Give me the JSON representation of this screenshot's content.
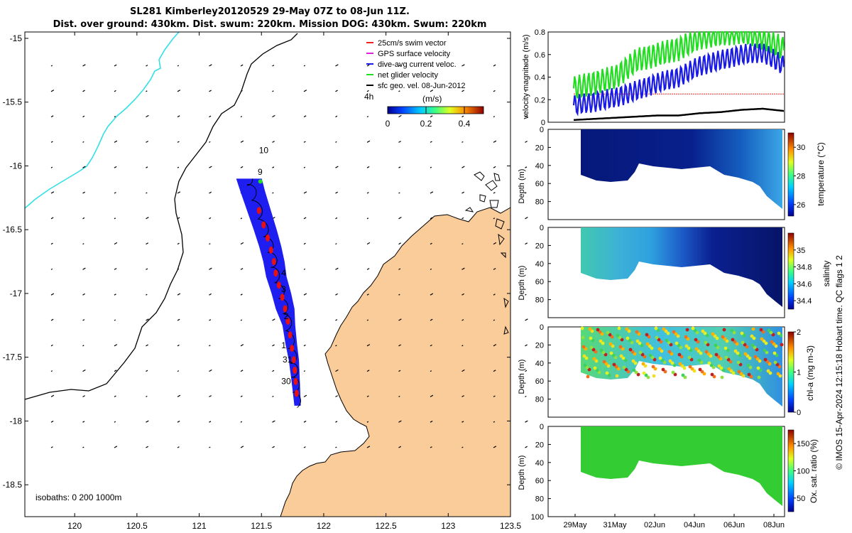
{
  "header": {
    "line1": "SL281 Kimberley20120529 29-May 07Z to 08-Jun 11Z.",
    "line2": "Dist. over ground: 430km. Dist. swum: 220km. Mission DOG: 430km. Swum: 220km"
  },
  "colors": {
    "land": "#f9cc9a",
    "track_fill": "#1e1ef0",
    "current": "#e81010",
    "cyan_line": "#33e0e6",
    "green": "#22dd22",
    "blue": "#1a1ae6",
    "red": "#ee2222",
    "axis": "#000000"
  },
  "map": {
    "x_ticks": [
      "120",
      "120.5",
      "121",
      "121.5",
      "122",
      "122.5",
      "123",
      "123.5"
    ],
    "y_ticks": [
      "-15",
      "-15.5",
      "-16",
      "-16.5",
      "-17",
      "-17.5",
      "-18",
      "-18.5"
    ],
    "xlim": [
      119.6,
      123.5
    ],
    "ylim": [
      -18.75,
      -14.95
    ],
    "legend": [
      "25cm/s swim vector",
      "GPS surface velocity",
      "dive-avg current veloc.",
      "net glider velocity",
      "sfc geo. vel. 08-Jun-2012"
    ],
    "legend_colors": [
      "#ee2222",
      "#dd22dd",
      "#1a1ae6",
      "#22dd22",
      "#000000"
    ],
    "colorbar": {
      "label": "(m/s)",
      "ticks": [
        "0",
        "0.2",
        "0.4"
      ],
      "range": [
        0,
        0.5
      ]
    },
    "day_labels": [
      {
        "text": "10",
        "lon": 121.48,
        "lat": -15.9
      },
      {
        "text": "9",
        "lon": 121.47,
        "lat": -16.07
      },
      {
        "text": "4",
        "lon": 121.66,
        "lat": -16.86
      },
      {
        "text": "3",
        "lon": 121.66,
        "lat": -16.99
      },
      {
        "text": "2",
        "lon": 121.68,
        "lat": -17.2
      },
      {
        "text": "1",
        "lon": 121.66,
        "lat": -17.43
      },
      {
        "text": "31",
        "lon": 121.67,
        "lat": -17.54
      },
      {
        "text": "30",
        "lon": 121.66,
        "lat": -17.71
      }
    ],
    "corner_label": "4h",
    "isobaths_label": "isobaths: 0   200  1000m"
  },
  "panels": {
    "velocity": {
      "ylabel": "velocity magnitude (m/s)",
      "ylim": [
        0,
        0.8
      ],
      "ticks": [
        "0",
        "0.2",
        "0.4",
        "0.6",
        "0.8"
      ]
    },
    "depth_ylabel": "Depth (m)",
    "depth_ticks": [
      "0",
      "20",
      "40",
      "60",
      "80",
      "100"
    ],
    "depth_ticks_short": [
      "0",
      "20",
      "40",
      "60",
      "80"
    ],
    "temperature": {
      "label": "temperature (°C)",
      "ticks": [
        "26",
        "28",
        "30"
      ]
    },
    "salinity": {
      "label": "salinity",
      "ticks": [
        "34.4",
        "34.6",
        "34.8",
        "35"
      ]
    },
    "chla": {
      "label": "chl-a (mg m-3)",
      "ticks": [
        "0",
        "1",
        "2"
      ]
    },
    "oxygen": {
      "label": "Ox. sat. ratio (%)",
      "ticks": [
        "50",
        "100",
        "150"
      ]
    },
    "time_ticks": [
      "29May",
      "31May",
      "02Jun",
      "04Jun",
      "06Jun",
      "08Jun"
    ]
  },
  "credit": "© IMOS 15-Apr-2024 12:15:18 Hobart time. QC flags 1  2",
  "chart_data": [
    {
      "type": "line",
      "title": "SL281 Kimberley20120529 29-May 07Z to 08-Jun 11Z.",
      "xlabel": "",
      "ylabel": "",
      "xlim": [
        119.6,
        123.5
      ],
      "ylim": [
        -18.75,
        -14.95
      ],
      "series": [
        {
          "name": "glider track",
          "x": [
            121.4,
            121.43,
            121.48,
            121.53,
            121.57,
            121.6,
            121.62,
            121.66,
            121.69,
            121.72,
            121.74,
            121.76,
            121.77,
            121.78,
            121.79
          ],
          "y": [
            -16.1,
            -16.2,
            -16.35,
            -16.5,
            -16.63,
            -16.75,
            -16.87,
            -17.0,
            -17.12,
            -17.25,
            -17.4,
            -17.52,
            -17.63,
            -17.75,
            -17.88
          ]
        }
      ]
    },
    {
      "type": "line",
      "ylabel": "velocity magnitude (m/s)",
      "ylim": [
        0,
        0.8
      ],
      "categories": [
        "29May",
        "31May",
        "02Jun",
        "04Jun",
        "06Jun",
        "08Jun"
      ],
      "x": [
        0,
        1,
        2,
        3,
        4,
        5,
        6,
        7,
        8,
        9,
        10
      ],
      "series": [
        {
          "name": "25cm/s swim vector",
          "values": [
            0.25,
            0.25,
            0.25,
            0.25,
            0.25,
            0.25,
            0.25,
            0.25,
            0.25,
            0.25,
            0.25
          ]
        },
        {
          "name": "dive-avg current veloc.",
          "values": [
            0.15,
            0.18,
            0.22,
            0.28,
            0.35,
            0.4,
            0.5,
            0.55,
            0.6,
            0.62,
            0.5
          ]
        },
        {
          "name": "net glider velocity",
          "values": [
            0.3,
            0.35,
            0.4,
            0.55,
            0.6,
            0.65,
            0.75,
            0.78,
            0.8,
            0.75,
            0.65
          ]
        },
        {
          "name": "sfc geo. vel. 08-Jun-2012",
          "values": [
            0.02,
            0.03,
            0.04,
            0.05,
            0.06,
            0.06,
            0.08,
            0.09,
            0.11,
            0.12,
            0.1
          ]
        }
      ]
    }
  ]
}
